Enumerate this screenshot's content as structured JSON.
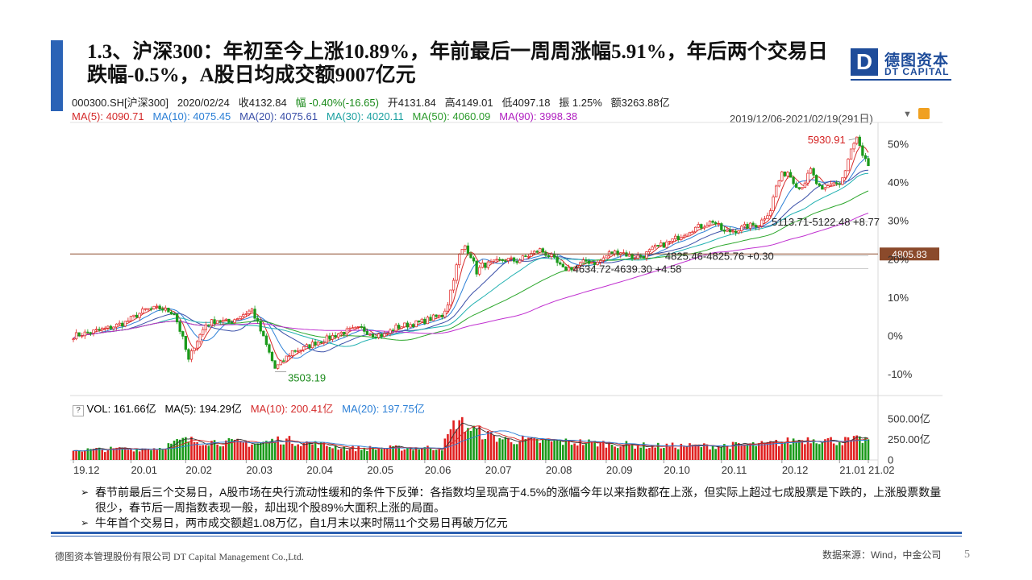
{
  "title": "1.3、沪深300：年初至今上涨10.89%，年前最后一周周涨幅5.91%，年后两个交易日跌幅-0.5%，A股日均成交额9007亿元",
  "logo": {
    "mark": "D",
    "cn": "德图资本",
    "en": "DT CAPITAL"
  },
  "info_bar": {
    "code": "000300.SH[沪深300]",
    "date": "2020/02/24",
    "close": "收4132.84",
    "change": "幅 -0.40%(-16.65)",
    "open": "开4131.84",
    "high": "高4149.01",
    "low": "低4097.18",
    "amplitude": "振 1.25%",
    "amount": "额3263.88亿"
  },
  "ma_bar": {
    "ma5": "MA(5): 4090.71",
    "ma10": "MA(10): 4075.45",
    "ma20": "MA(20): 4075.61",
    "ma30": "MA(30): 4020.11",
    "ma50": "MA(50): 4060.09",
    "ma90": "MA(90): 3998.38",
    "range": "2019/12/06-2021/02/19(291日)"
  },
  "colors": {
    "up": "#e02020",
    "down": "#1a9a1a",
    "ma5": "#d42a2a",
    "ma10": "#2b7fd6",
    "ma20": "#3a4fa8",
    "ma30": "#20b0b0",
    "ma50": "#2aa62a",
    "ma90": "#c030d0",
    "ref": "#8b4a2b",
    "brand": "#1e4c9a"
  },
  "chart_data": {
    "type": "candlestick",
    "x_ticks": [
      "19.12",
      "20.01",
      "20.02",
      "20.03",
      "20.04",
      "20.05",
      "20.06",
      "20.07",
      "20.08",
      "20.09",
      "20.10",
      "20.11",
      "20.12",
      "21.01",
      "21.02"
    ],
    "y_ticks": [
      "50%",
      "40%",
      "30%",
      "20%",
      "10%",
      "0%",
      "-10%"
    ],
    "ylim_pct": [
      -12,
      54
    ],
    "base_level": 3960,
    "reference_line": {
      "value": 4805.83,
      "label": "4805.83"
    },
    "annotations": {
      "high": "5930.91",
      "low": "3503.19",
      "gap1": "5113.71-5122.48",
      "gap1_pct": "+8.77",
      "gap2": "4825.46-4825.76",
      "gap2_pct": "+0.30",
      "gap3": "4634.72-4639.30",
      "gap3_pct": "+4.58"
    },
    "price_path": [
      [
        0,
        0
      ],
      [
        5,
        0.8
      ],
      [
        12,
        2.0
      ],
      [
        18,
        3.5
      ],
      [
        25,
        6.8
      ],
      [
        30,
        7.2
      ],
      [
        35,
        6.0
      ],
      [
        38,
        -0.8
      ],
      [
        40,
        -6.5
      ],
      [
        42,
        -2.5
      ],
      [
        46,
        3.0
      ],
      [
        50,
        4.2
      ],
      [
        54,
        3.5
      ],
      [
        58,
        5.3
      ],
      [
        62,
        6.8
      ],
      [
        64,
        3.2
      ],
      [
        67,
        -2.5
      ],
      [
        70,
        -8.5
      ],
      [
        72,
        -7.2
      ],
      [
        76,
        -4.0
      ],
      [
        80,
        -3.3
      ],
      [
        84,
        -1.7
      ],
      [
        88,
        -0.8
      ],
      [
        92,
        0.6
      ],
      [
        96,
        1.4
      ],
      [
        100,
        1.9
      ],
      [
        104,
        0.4
      ],
      [
        108,
        0.2
      ],
      [
        112,
        2.2
      ],
      [
        116,
        2.9
      ],
      [
        120,
        3.4
      ],
      [
        124,
        4.5
      ],
      [
        128,
        5.3
      ],
      [
        130,
        8.5
      ],
      [
        132,
        15.2
      ],
      [
        134,
        21.0
      ],
      [
        136,
        23.5
      ],
      [
        138,
        21.0
      ],
      [
        140,
        16.7
      ],
      [
        142,
        18.4
      ],
      [
        146,
        19.0
      ],
      [
        150,
        20.0
      ],
      [
        154,
        19.5
      ],
      [
        158,
        21.0
      ],
      [
        162,
        22.4
      ],
      [
        166,
        20.5
      ],
      [
        170,
        17.3
      ],
      [
        174,
        17.9
      ],
      [
        178,
        19.5
      ],
      [
        182,
        19.0
      ],
      [
        186,
        21.5
      ],
      [
        190,
        22.0
      ],
      [
        194,
        20.5
      ],
      [
        198,
        21.0
      ],
      [
        202,
        23.0
      ],
      [
        206,
        24.1
      ],
      [
        210,
        25.8
      ],
      [
        214,
        27.7
      ],
      [
        218,
        28.6
      ],
      [
        222,
        30.0
      ],
      [
        226,
        27.0
      ],
      [
        230,
        27.6
      ],
      [
        234,
        28.6
      ],
      [
        238,
        29.1
      ],
      [
        242,
        33.0
      ],
      [
        244,
        39.0
      ],
      [
        246,
        42.0
      ],
      [
        248,
        42.8
      ],
      [
        250,
        40.5
      ],
      [
        252,
        38.5
      ],
      [
        254,
        40.3
      ],
      [
        256,
        43.2
      ],
      [
        258,
        39.8
      ],
      [
        260,
        37.5
      ],
      [
        262,
        38.9
      ],
      [
        264,
        40.2
      ],
      [
        266,
        39.5
      ],
      [
        268,
        43.0
      ],
      [
        270,
        48.5
      ],
      [
        272,
        51.5
      ],
      [
        274,
        46.5
      ],
      [
        276,
        44.5
      ]
    ],
    "volume_axis": [
      "500.00亿",
      "250.00亿",
      "0"
    ],
    "volume_ylim": [
      0,
      560
    ],
    "volume_path": [
      [
        0,
        120
      ],
      [
        30,
        145
      ],
      [
        38,
        240
      ],
      [
        64,
        200
      ],
      [
        72,
        250
      ],
      [
        96,
        140
      ],
      [
        128,
        150
      ],
      [
        133,
        480
      ],
      [
        138,
        380
      ],
      [
        144,
        300
      ],
      [
        150,
        250
      ],
      [
        160,
        230
      ],
      [
        180,
        210
      ],
      [
        200,
        170
      ],
      [
        220,
        170
      ],
      [
        240,
        190
      ],
      [
        256,
        260
      ],
      [
        266,
        230
      ],
      [
        276,
        250
      ]
    ]
  },
  "volume_bar": {
    "help": "?",
    "vol": "VOL: 161.66亿",
    "ma5": "MA(5): 194.29亿",
    "ma10": "MA(10): 200.41亿",
    "ma20": "MA(20): 197.75亿"
  },
  "notes": [
    "春节前最后三个交易日，A股市场在央行流动性缓和的条件下反弹：各指数均呈现高于4.5%的涨幅今年以来指数都在上涨，但实际上超过七成股票是下跌的，上涨股票数量很少，春节后一周指数表现一般，却出现个股89%大面积上涨的局面。",
    "牛年首个交易日，两市成交额超1.08万亿，自1月末以来时隔11个交易日再破万亿元"
  ],
  "footer": {
    "company": "德图资本管理股份有限公司 DT Capital Management Co.,Ltd.",
    "source": "数据来源：Wind，中金公司",
    "page": "5"
  }
}
